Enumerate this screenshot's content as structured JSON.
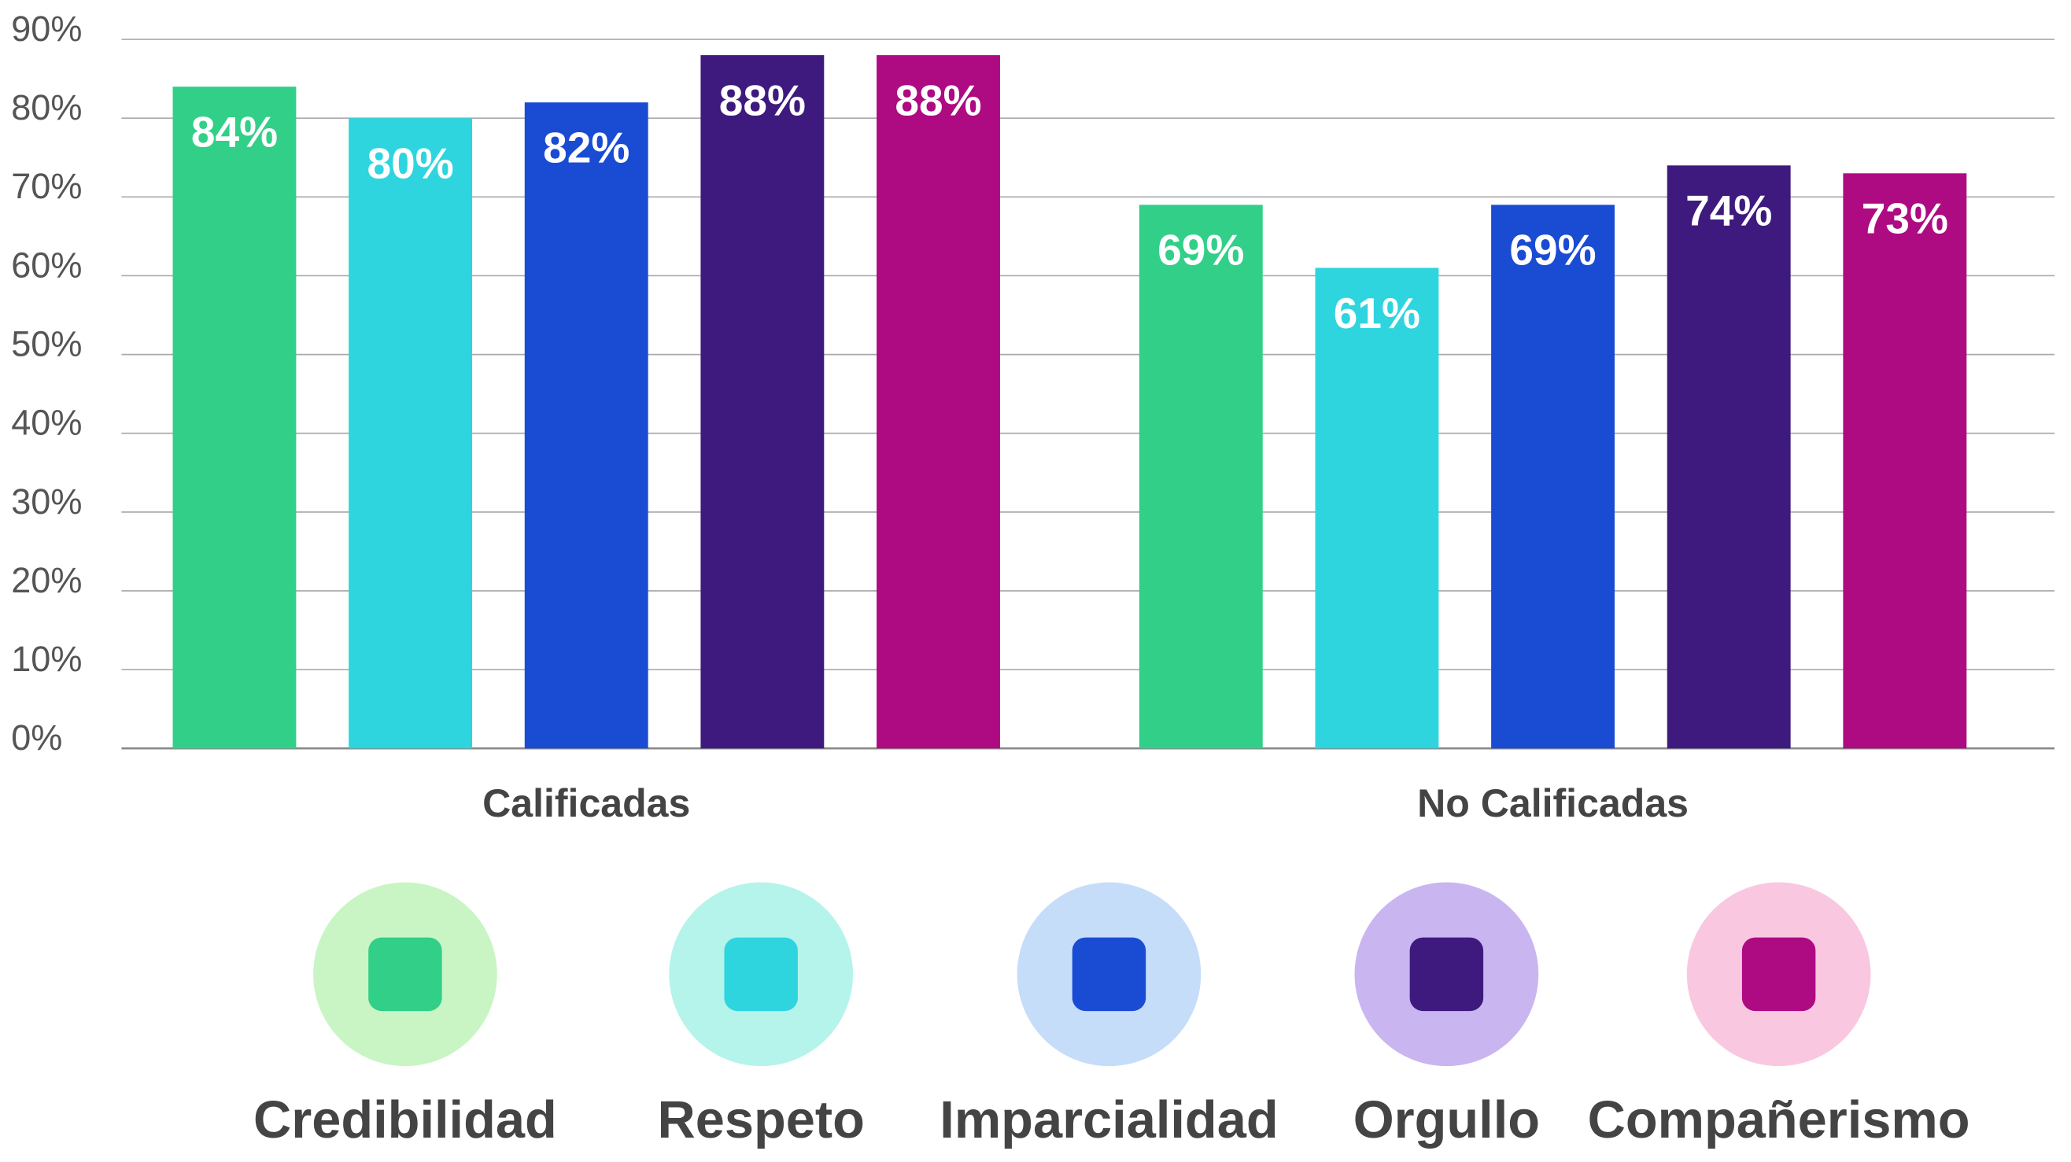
{
  "chart_data": {
    "type": "bar",
    "categories": [
      "Calificadas",
      "No Calificadas"
    ],
    "series": [
      {
        "name": "Credibilidad",
        "color": "#32cf88",
        "values": [
          84,
          69
        ],
        "value_labels": [
          "84%",
          "69%"
        ]
      },
      {
        "name": "Respeto",
        "color": "#2ed5de",
        "values": [
          80,
          61
        ],
        "value_labels": [
          "80%",
          "61%"
        ]
      },
      {
        "name": "Imparcialidad",
        "color": "#1a4bd3",
        "values": [
          82,
          69
        ],
        "value_labels": [
          "82%",
          "69%"
        ]
      },
      {
        "name": "Orgullo",
        "color": "#3e1a7e",
        "values": [
          88,
          74
        ],
        "value_labels": [
          "88%",
          "74%"
        ]
      },
      {
        "name": "Compañerismo",
        "color": "#ae0a82",
        "values": [
          88,
          73
        ],
        "value_labels": [
          "88%",
          "73%"
        ]
      }
    ],
    "ylim": [
      0,
      90
    ],
    "yticks": [
      {
        "value": 0,
        "label": "0%"
      },
      {
        "value": 10,
        "label": "10%"
      },
      {
        "value": 20,
        "label": "20%"
      },
      {
        "value": 30,
        "label": "30%"
      },
      {
        "value": 40,
        "label": "40%"
      },
      {
        "value": 50,
        "label": "50%"
      },
      {
        "value": 60,
        "label": "60%"
      },
      {
        "value": 70,
        "label": "70%"
      },
      {
        "value": 80,
        "label": "80%"
      },
      {
        "value": 90,
        "label": "90%"
      }
    ],
    "grid": true,
    "legend": "bottom"
  }
}
